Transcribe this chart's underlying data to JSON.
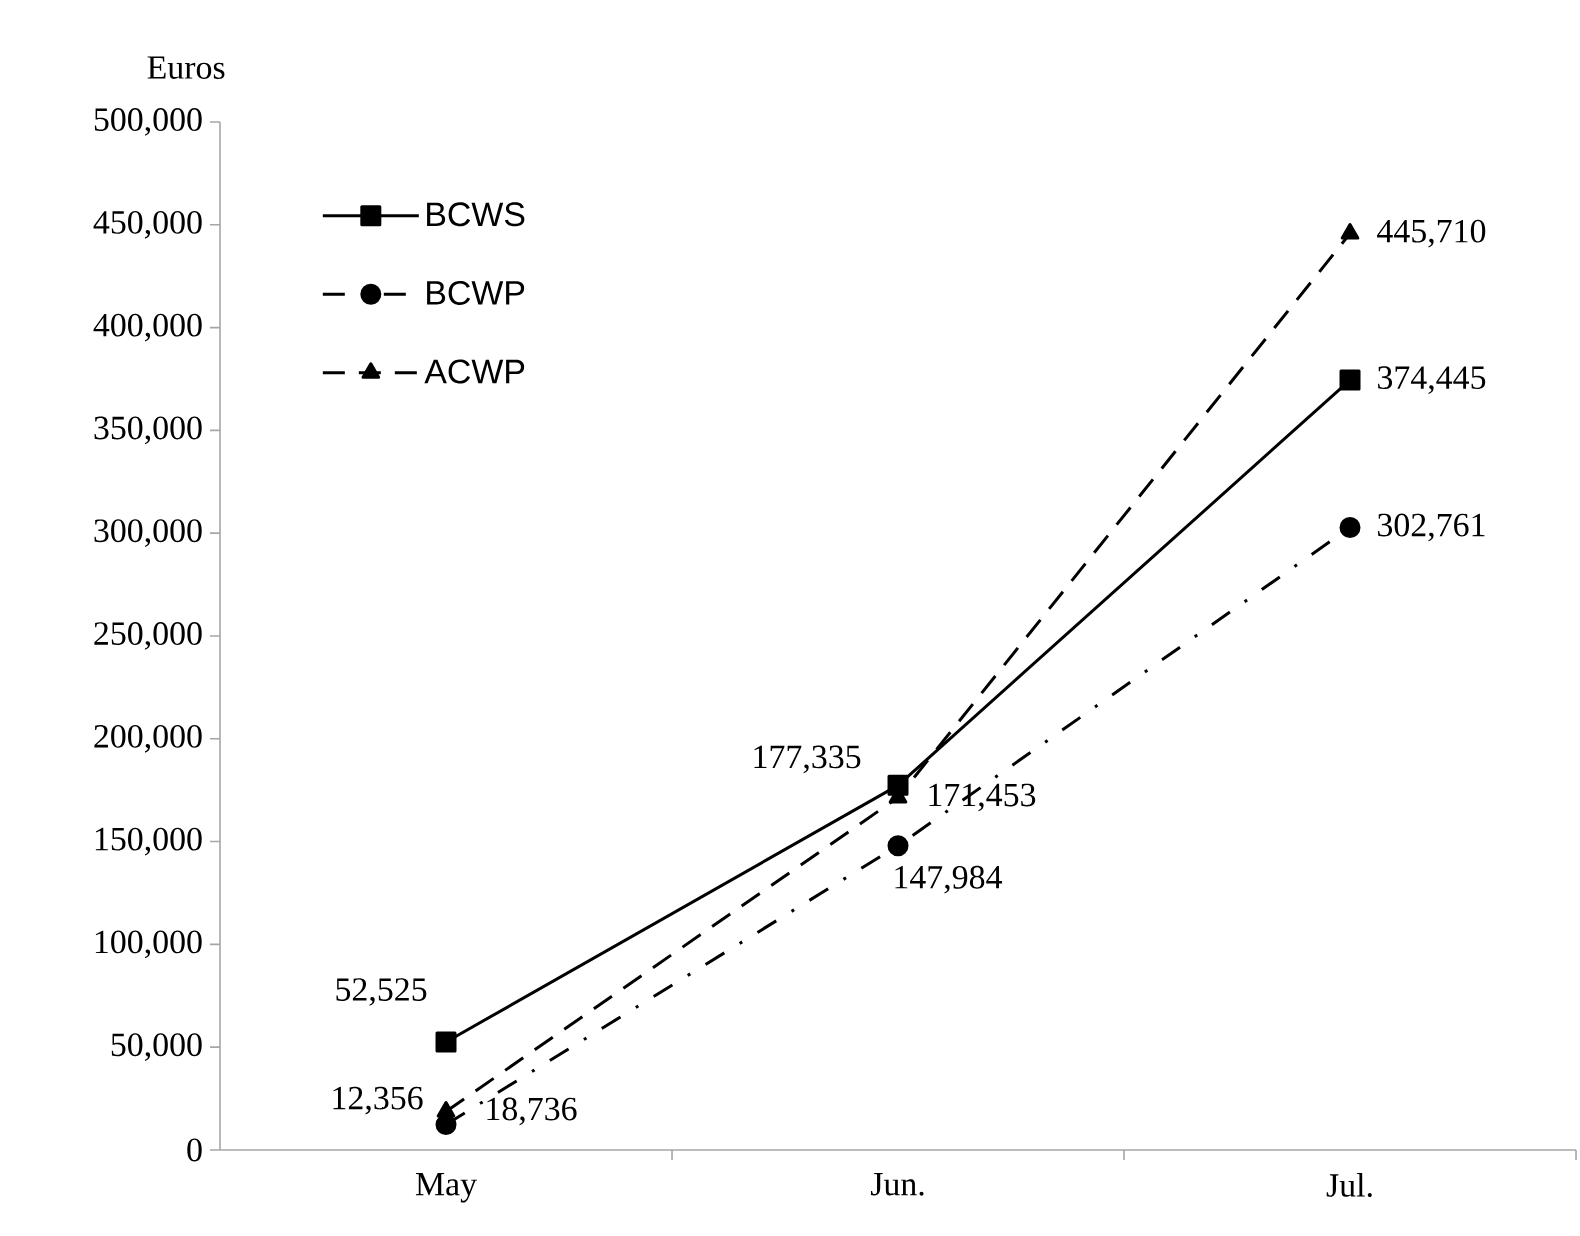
{
  "chart_data": {
    "type": "line",
    "ylabel": "Euros",
    "categories": [
      "May",
      "Jun.",
      "Jul."
    ],
    "ylim": [
      0,
      500000
    ],
    "yticks": [
      {
        "value": 0,
        "label": "0"
      },
      {
        "value": 50000,
        "label": "50,000"
      },
      {
        "value": 100000,
        "label": "100,000"
      },
      {
        "value": 150000,
        "label": "150,000"
      },
      {
        "value": 200000,
        "label": "200,000"
      },
      {
        "value": 250000,
        "label": "250,000"
      },
      {
        "value": 300000,
        "label": "300,000"
      },
      {
        "value": 350000,
        "label": "350,000"
      },
      {
        "value": 400000,
        "label": "400,000"
      },
      {
        "value": 450000,
        "label": "450,000"
      },
      {
        "value": 500000,
        "label": "500,000"
      }
    ],
    "grid": false,
    "legend": "top left",
    "series": [
      {
        "name": "BCWS",
        "color": "#000000",
        "marker": "square",
        "line_style": "solid",
        "values": [
          52525,
          177335,
          374445
        ],
        "value_labels": [
          "52,525",
          "177,335",
          "374,445"
        ]
      },
      {
        "name": "BCWP",
        "color": "#000000",
        "marker": "circle",
        "line_style": "dashdot",
        "values": [
          12356,
          147984,
          302761
        ],
        "value_labels": [
          "12,356",
          "147,984",
          "302,761"
        ]
      },
      {
        "name": "ACWP",
        "color": "#000000",
        "marker": "triangle",
        "line_style": "dashed",
        "values": [
          18736,
          171453,
          445710
        ],
        "value_labels": [
          "18,736",
          "171,453",
          "445,710"
        ]
      }
    ]
  }
}
